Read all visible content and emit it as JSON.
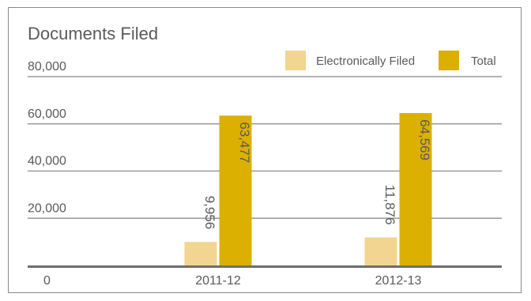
{
  "chart_data": {
    "type": "bar",
    "title": "Documents Filed",
    "categories": [
      "2011-12",
      "2012-13"
    ],
    "series": [
      {
        "name": "Electronically Filed",
        "values": [
          9956,
          11876
        ],
        "labels": [
          "9,956",
          "11,876"
        ],
        "color": "#f2d590"
      },
      {
        "name": "Total",
        "values": [
          63477,
          64569
        ],
        "labels": [
          "63,477",
          "64,569"
        ],
        "color": "#dcb000"
      }
    ],
    "ylim": [
      0,
      80000
    ],
    "yticks": [
      0,
      20000,
      40000,
      60000,
      80000
    ],
    "ytick_labels": [
      "0",
      "20,000",
      "40,000",
      "60,000",
      "80,000"
    ],
    "grid": true,
    "legend_position": "top-right",
    "colors": {
      "gridline": "#9a9a9a",
      "baseline": "#6e6e6e",
      "text": "#5a5a5a",
      "frame": "#8a8a8a"
    }
  }
}
